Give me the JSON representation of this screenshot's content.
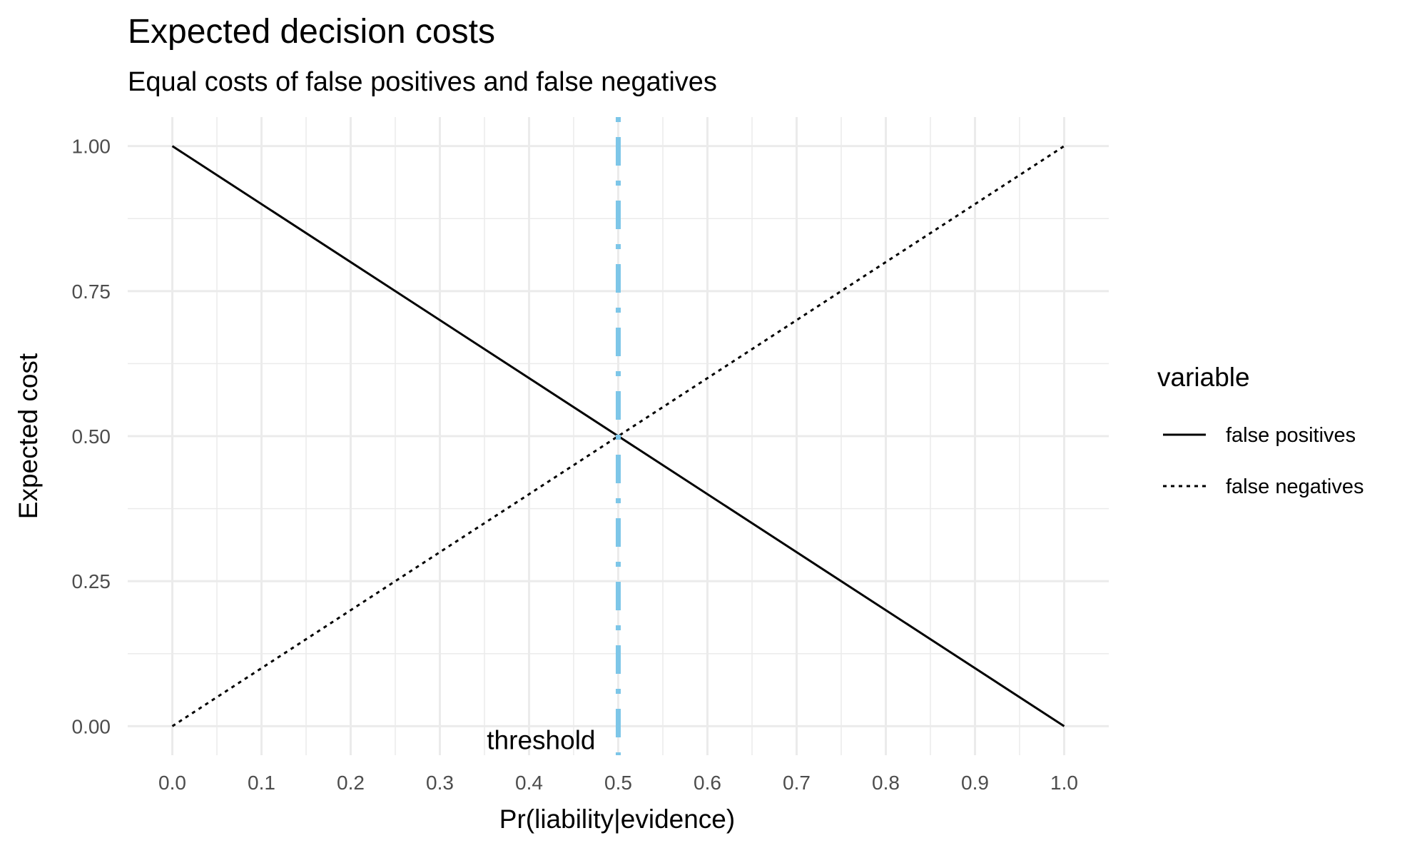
{
  "chart_data": {
    "type": "line",
    "title": "Expected decision costs",
    "subtitle": "Equal costs of false positives and false negatives",
    "xlabel": "Pr(liability|evidence)",
    "ylabel": "Expected cost",
    "xlim": [
      -0.05,
      1.05
    ],
    "ylim": [
      -0.05,
      1.05
    ],
    "x_ticks": [
      "0.0",
      "0.1",
      "0.2",
      "0.3",
      "0.4",
      "0.5",
      "0.6",
      "0.7",
      "0.8",
      "0.9",
      "1.0"
    ],
    "y_ticks": [
      "0.00",
      "0.25",
      "0.50",
      "0.75",
      "1.00"
    ],
    "grid": true,
    "legend": {
      "title": "variable",
      "position": "right"
    },
    "series": [
      {
        "name": "false positives",
        "linetype": "solid",
        "color": "#000000",
        "x": [
          0,
          1
        ],
        "y": [
          1,
          0
        ]
      },
      {
        "name": "false negatives",
        "linetype": "dotted",
        "color": "#000000",
        "x": [
          0,
          1
        ],
        "y": [
          0,
          1
        ]
      }
    ],
    "vline": {
      "x": 0.5,
      "color": "#7DC6E8",
      "linetype": "dotdash"
    },
    "annotations": [
      {
        "text": "threshold",
        "x": 0.5,
        "y": 0
      }
    ]
  }
}
